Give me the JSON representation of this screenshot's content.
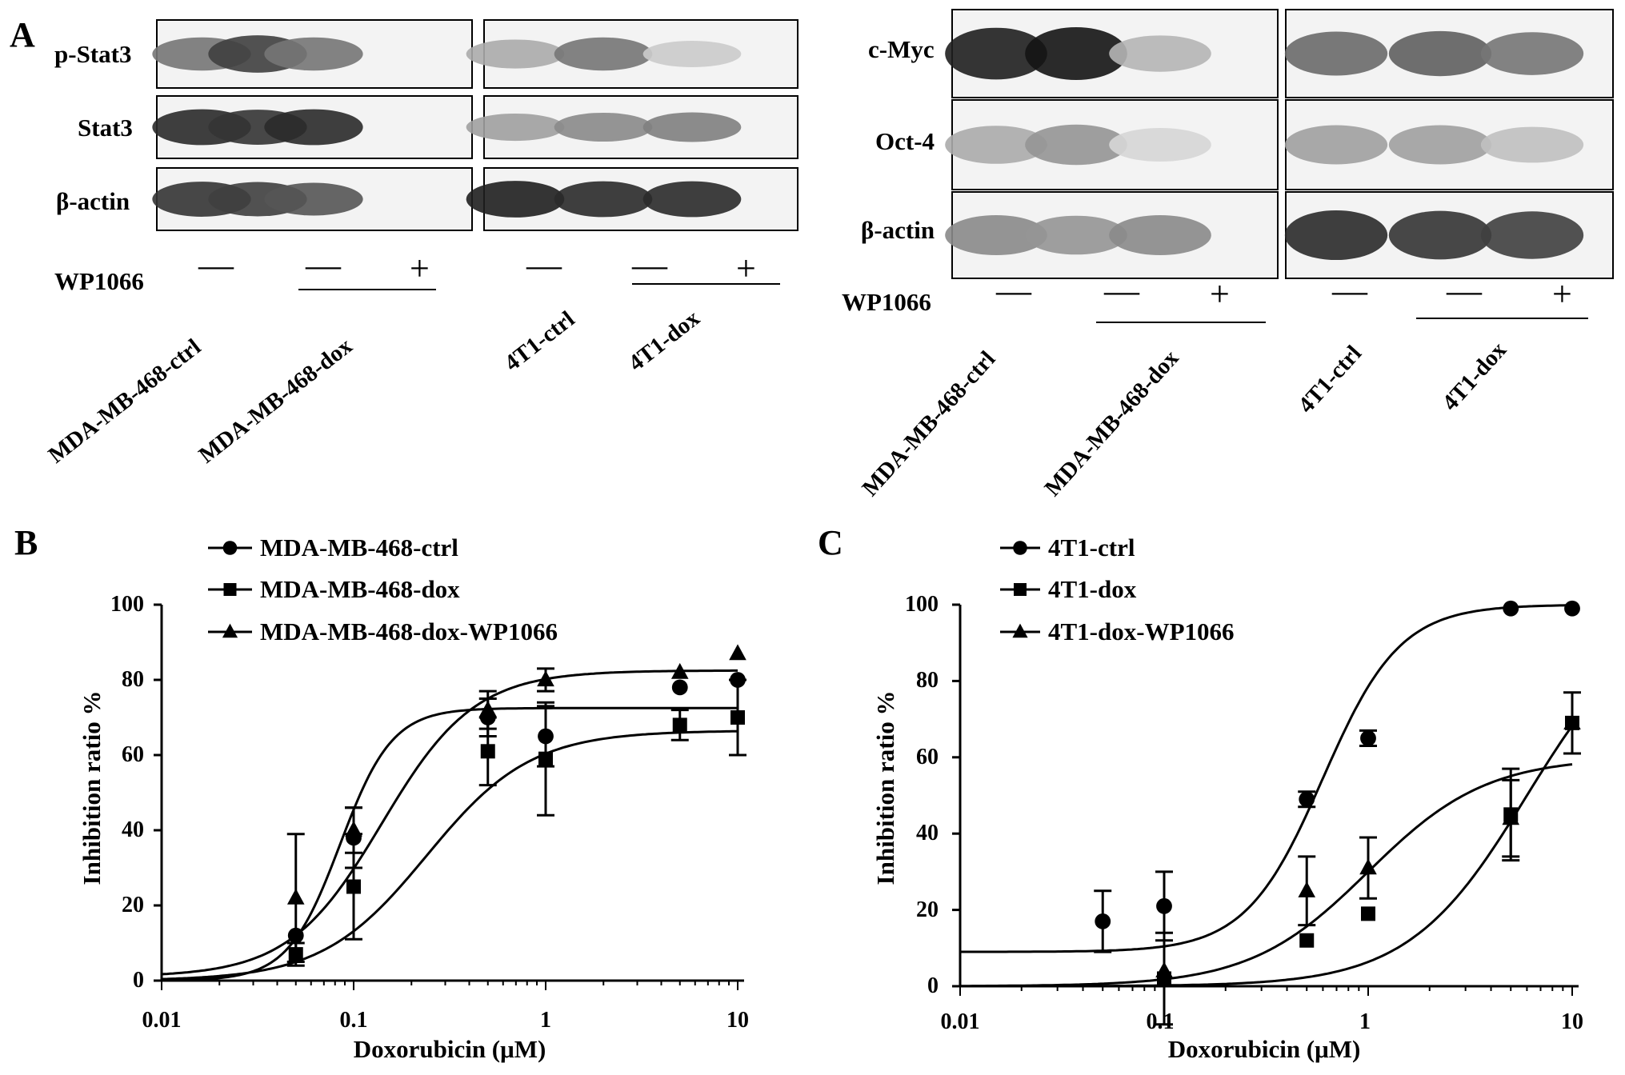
{
  "panels": {
    "A": {
      "letter": "A",
      "left_group": {
        "rows": [
          "p-Stat3",
          "Stat3",
          "β-actin"
        ],
        "treatment_label": "WP1066",
        "signs": [
          "—",
          "—",
          "+",
          "—",
          "—",
          "+"
        ],
        "lanes": [
          "MDA-MB-468-ctrl",
          "MDA-MB-468-dox",
          "4T1-ctrl",
          "4T1-dox"
        ]
      },
      "right_group": {
        "rows": [
          "c-Myc",
          "Oct-4",
          "β-actin"
        ],
        "treatment_label": "WP1066",
        "signs": [
          "—",
          "—",
          "+",
          "—",
          "—",
          "+"
        ],
        "lanes": [
          "MDA-MB-468-ctrl",
          "MDA-MB-468-dox",
          "4T1-ctrl",
          "4T1-dox"
        ]
      },
      "band_intensities": {
        "left": [
          [
            0.55,
            0.8,
            0.55,
            0.3,
            0.55,
            0.15
          ],
          [
            0.9,
            0.85,
            0.9,
            0.35,
            0.45,
            0.5
          ],
          [
            0.85,
            0.8,
            0.7,
            0.95,
            0.9,
            0.9
          ]
        ],
        "right": [
          [
            0.95,
            1.0,
            0.25,
            0.6,
            0.65,
            0.55
          ],
          [
            0.3,
            0.4,
            0.1,
            0.35,
            0.35,
            0.2
          ],
          [
            0.45,
            0.4,
            0.45,
            0.9,
            0.85,
            0.8
          ]
        ]
      }
    },
    "B": {
      "letter": "B"
    },
    "C": {
      "letter": "C"
    }
  },
  "chart_data": [
    {
      "panel": "B",
      "type": "scatter",
      "xlabel": "Doxorubicin (μM)",
      "ylabel": "Inhibition ratio %",
      "x_scale": "log",
      "xlim": [
        0.01,
        10
      ],
      "ylim": [
        0,
        100
      ],
      "x_ticks": [
        "0.01",
        "0.1",
        "1",
        "10"
      ],
      "y_ticks": [
        "0",
        "20",
        "40",
        "60",
        "80",
        "100"
      ],
      "legend_position": "top-left",
      "series": [
        {
          "name": "MDA-MB-468-ctrl",
          "marker": "circle",
          "x": [
            0.05,
            0.1,
            0.5,
            1,
            5,
            10
          ],
          "y": [
            12,
            38,
            70,
            65,
            78,
            80
          ],
          "err": [
            0,
            8,
            5,
            8,
            0,
            0
          ]
        },
        {
          "name": "MDA-MB-468-dox",
          "marker": "square",
          "x": [
            0.05,
            0.1,
            0.5,
            1,
            5,
            10
          ],
          "y": [
            7,
            25,
            61,
            59,
            68,
            70
          ],
          "err": [
            3,
            14,
            9,
            15,
            4,
            10
          ]
        },
        {
          "name": "MDA-MB-468-dox-WP1066",
          "marker": "triangle",
          "x": [
            0.05,
            0.1,
            0.5,
            1,
            5,
            10
          ],
          "y": [
            22,
            40,
            72,
            80,
            82,
            87
          ],
          "err": [
            17,
            6,
            5,
            3,
            0,
            0
          ]
        }
      ]
    },
    {
      "panel": "C",
      "type": "scatter",
      "xlabel": "Doxorubicin (μM)",
      "ylabel": "Inhibition ratio %",
      "x_scale": "log",
      "xlim": [
        0.01,
        10
      ],
      "ylim": [
        0,
        100
      ],
      "x_ticks": [
        "0.01",
        "0.1",
        "1",
        "10"
      ],
      "y_ticks": [
        "0",
        "20",
        "40",
        "60",
        "80",
        "100"
      ],
      "legend_position": "top-left",
      "series": [
        {
          "name": "4T1-ctrl",
          "marker": "circle",
          "x": [
            0.05,
            0.1,
            0.5,
            1,
            5,
            10
          ],
          "y": [
            17,
            21,
            49,
            65,
            99,
            99
          ],
          "err": [
            8,
            9,
            2,
            2,
            0,
            0
          ]
        },
        {
          "name": "4T1-dox",
          "marker": "square",
          "x": [
            0.1,
            0.5,
            1,
            5,
            10
          ],
          "y": [
            2,
            12,
            19,
            45,
            69
          ],
          "err": [
            12,
            0,
            0,
            12,
            8
          ]
        },
        {
          "name": "4T1-dox-WP1066",
          "marker": "triangle",
          "x": [
            0.1,
            0.5,
            1,
            5,
            10
          ],
          "y": [
            4,
            25,
            31,
            44,
            69
          ],
          "err": [
            0,
            9,
            8,
            10,
            0
          ]
        }
      ]
    }
  ]
}
